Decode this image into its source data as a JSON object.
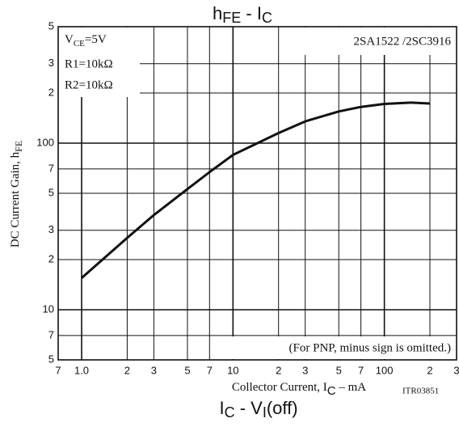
{
  "chart_data": {
    "type": "line",
    "title": [
      "h",
      "FE",
      " - I",
      "C"
    ],
    "x_label": [
      "Collector Current, I",
      "C",
      " – mA"
    ],
    "y_label": [
      "DC Current Gain, h",
      "FE"
    ],
    "annotations": {
      "vce": [
        "V",
        "CE",
        "=5V"
      ],
      "r1": "R1=10kΩ",
      "r2": "R2=10kΩ",
      "part": "2SA1522 /2SC3916",
      "note": "(For PNP, minus sign is omitted.)",
      "code": "ITR03851"
    },
    "next_title": [
      "I",
      "C",
      " - V",
      "I",
      "(off)"
    ],
    "log_x": true,
    "log_y": true,
    "grid": true,
    "xlim": [
      0.7,
      300
    ],
    "ylim": [
      5,
      500
    ],
    "xticks": [
      {
        "value": 0.7,
        "label": "7"
      },
      {
        "value": 1,
        "label": "1.0"
      },
      2,
      3,
      5,
      7,
      10,
      {
        "value": 20,
        "label": "2"
      },
      {
        "value": 30,
        "label": "3"
      },
      {
        "value": 50,
        "label": "5"
      },
      {
        "value": 70,
        "label": "7"
      },
      100,
      {
        "value": 200,
        "label": "2"
      },
      {
        "value": 300,
        "label": "3"
      }
    ],
    "yticks": [
      5,
      7,
      10,
      {
        "value": 20,
        "label": "2"
      },
      {
        "value": 30,
        "label": "3"
      },
      {
        "value": 50,
        "label": "5"
      },
      {
        "value": 70,
        "label": "7"
      },
      100,
      {
        "value": 200,
        "label": "2"
      },
      {
        "value": 300,
        "label": "3"
      },
      {
        "value": 500,
        "label": "5"
      }
    ],
    "series": [
      {
        "color": "#111111",
        "x": [
          1,
          2,
          3,
          5,
          7,
          10,
          20,
          30,
          50,
          70,
          100,
          150,
          200
        ],
        "values": [
          15.5,
          27,
          37,
          53,
          67,
          85,
          115,
          135,
          155,
          165,
          172,
          175,
          173
        ]
      }
    ]
  }
}
